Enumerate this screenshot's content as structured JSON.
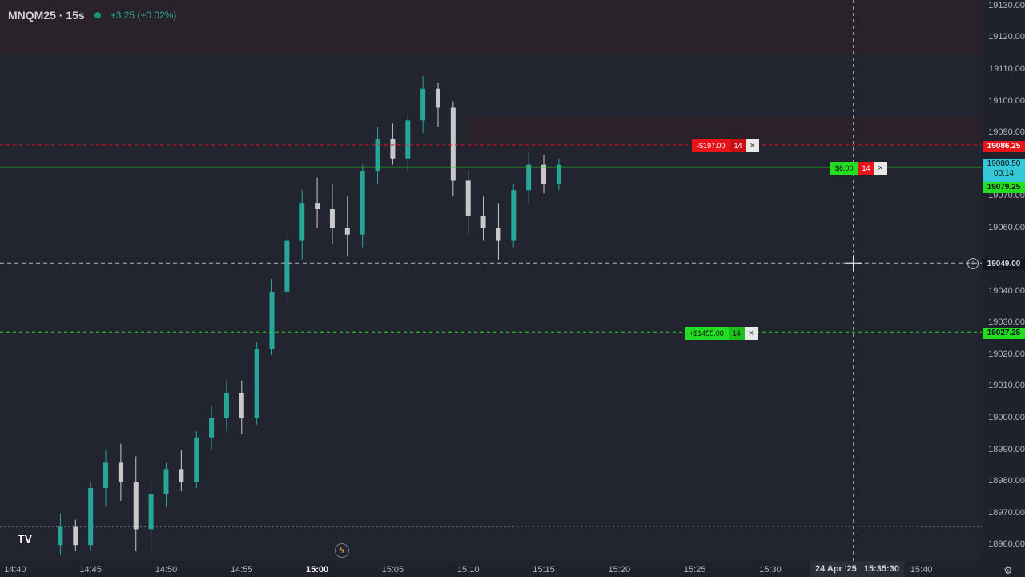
{
  "header": {
    "symbol": "MNQM25 · 15s",
    "change": "+3.25 (+0.02%)"
  },
  "price_axis": {
    "ticks": [
      "19130.00",
      "19120.00",
      "19110.00",
      "19100.00",
      "19090.00",
      "19070.00",
      "19060.00",
      "19040.00",
      "19030.00",
      "19020.00",
      "19010.00",
      "19000.00",
      "18990.00",
      "18980.00",
      "18970.00",
      "18960.00"
    ],
    "crosshair_price": "19049.00",
    "stop_price": "19086.25",
    "current_price": "19080.50",
    "countdown": "00:14",
    "entry_price": "19079.25",
    "target_price": "19027.25"
  },
  "time_axis": {
    "ticks": [
      "14:40",
      "14:45",
      "14:50",
      "14:55",
      "15:00",
      "15:05",
      "15:10",
      "15:15",
      "15:20",
      "15:25",
      "15:30",
      "15:40"
    ],
    "crosshair_date": "24 Apr '25",
    "crosshair_time": "15:35:30"
  },
  "orders": {
    "stop": {
      "pnl": "-$197.00",
      "qty": "14",
      "close": "×"
    },
    "position": {
      "pnl": "$6.00",
      "qty": "14",
      "close": "×"
    },
    "target": {
      "pnl": "+$1455.00",
      "qty": "14",
      "close": "×"
    }
  },
  "icons": {
    "logo": "TV",
    "bolt": "ϟ",
    "plus": "+",
    "settings": "⚙"
  },
  "colors": {
    "background": "#22252f",
    "up": "#26a69a",
    "down": "#c8c8c8",
    "stop_red": "#e8141c",
    "green": "#22dd22",
    "position_line": "#26c926"
  },
  "chart_data": {
    "type": "candlestick",
    "x_range": [
      "14:39",
      "15:44"
    ],
    "y_range": [
      18955,
      19132
    ],
    "bars": [
      {
        "t": "14:43",
        "o": 18960,
        "h": 18970,
        "l": 18957,
        "c": 18966
      },
      {
        "t": "14:44",
        "o": 18966,
        "h": 18968,
        "l": 18958,
        "c": 18960
      },
      {
        "t": "14:45",
        "o": 18960,
        "h": 18980,
        "l": 18958,
        "c": 18978
      },
      {
        "t": "14:46",
        "o": 18978,
        "h": 18990,
        "l": 18972,
        "c": 18986
      },
      {
        "t": "14:47",
        "o": 18986,
        "h": 18992,
        "l": 18974,
        "c": 18980
      },
      {
        "t": "14:48",
        "o": 18980,
        "h": 18988,
        "l": 18958,
        "c": 18965
      },
      {
        "t": "14:49",
        "o": 18965,
        "h": 18980,
        "l": 18958,
        "c": 18976
      },
      {
        "t": "14:50",
        "o": 18976,
        "h": 18986,
        "l": 18972,
        "c": 18984
      },
      {
        "t": "14:51",
        "o": 18984,
        "h": 18990,
        "l": 18977,
        "c": 18980
      },
      {
        "t": "14:52",
        "o": 18980,
        "h": 18996,
        "l": 18978,
        "c": 18994
      },
      {
        "t": "14:53",
        "o": 18994,
        "h": 19004,
        "l": 18990,
        "c": 19000
      },
      {
        "t": "14:54",
        "o": 19000,
        "h": 19012,
        "l": 18996,
        "c": 19008
      },
      {
        "t": "14:55",
        "o": 19008,
        "h": 19012,
        "l": 18995,
        "c": 19000
      },
      {
        "t": "14:56",
        "o": 19000,
        "h": 19024,
        "l": 18998,
        "c": 19022
      },
      {
        "t": "14:57",
        "o": 19022,
        "h": 19044,
        "l": 19020,
        "c": 19040
      },
      {
        "t": "14:58",
        "o": 19040,
        "h": 19060,
        "l": 19036,
        "c": 19056
      },
      {
        "t": "14:59",
        "o": 19056,
        "h": 19072,
        "l": 19050,
        "c": 19068
      },
      {
        "t": "15:00",
        "o": 19068,
        "h": 19076,
        "l": 19060,
        "c": 19066
      },
      {
        "t": "15:01",
        "o": 19066,
        "h": 19074,
        "l": 19055,
        "c": 19060
      },
      {
        "t": "15:02",
        "o": 19060,
        "h": 19070,
        "l": 19051,
        "c": 19058
      },
      {
        "t": "15:03",
        "o": 19058,
        "h": 19080,
        "l": 19054,
        "c": 19078
      },
      {
        "t": "15:04",
        "o": 19078,
        "h": 19092,
        "l": 19074,
        "c": 19088
      },
      {
        "t": "15:05",
        "o": 19088,
        "h": 19093,
        "l": 19080,
        "c": 19082
      },
      {
        "t": "15:06",
        "o": 19082,
        "h": 19096,
        "l": 19078,
        "c": 19094
      },
      {
        "t": "15:07",
        "o": 19094,
        "h": 19108,
        "l": 19090,
        "c": 19104
      },
      {
        "t": "15:08",
        "o": 19104,
        "h": 19106,
        "l": 19092,
        "c": 19098
      },
      {
        "t": "15:09",
        "o": 19098,
        "h": 19100,
        "l": 19070,
        "c": 19075
      },
      {
        "t": "15:10",
        "o": 19075,
        "h": 19078,
        "l": 19058,
        "c": 19064
      },
      {
        "t": "15:11",
        "o": 19064,
        "h": 19070,
        "l": 19056,
        "c": 19060
      },
      {
        "t": "15:12",
        "o": 19060,
        "h": 19068,
        "l": 19050,
        "c": 19056
      },
      {
        "t": "15:13",
        "o": 19056,
        "h": 19074,
        "l": 19054,
        "c": 19072
      },
      {
        "t": "15:14",
        "o": 19072,
        "h": 19084,
        "l": 19068,
        "c": 19080
      },
      {
        "t": "15:15",
        "o": 19080,
        "h": 19083,
        "l": 19071,
        "c": 19074
      },
      {
        "t": "15:16",
        "o": 19074,
        "h": 19082,
        "l": 19072,
        "c": 19080
      }
    ],
    "price_lines": {
      "stop": 19086.25,
      "position": 19079.25,
      "crosshair": 19049.0,
      "target": 19027.25
    },
    "crosshair_time": "15:35:30"
  }
}
